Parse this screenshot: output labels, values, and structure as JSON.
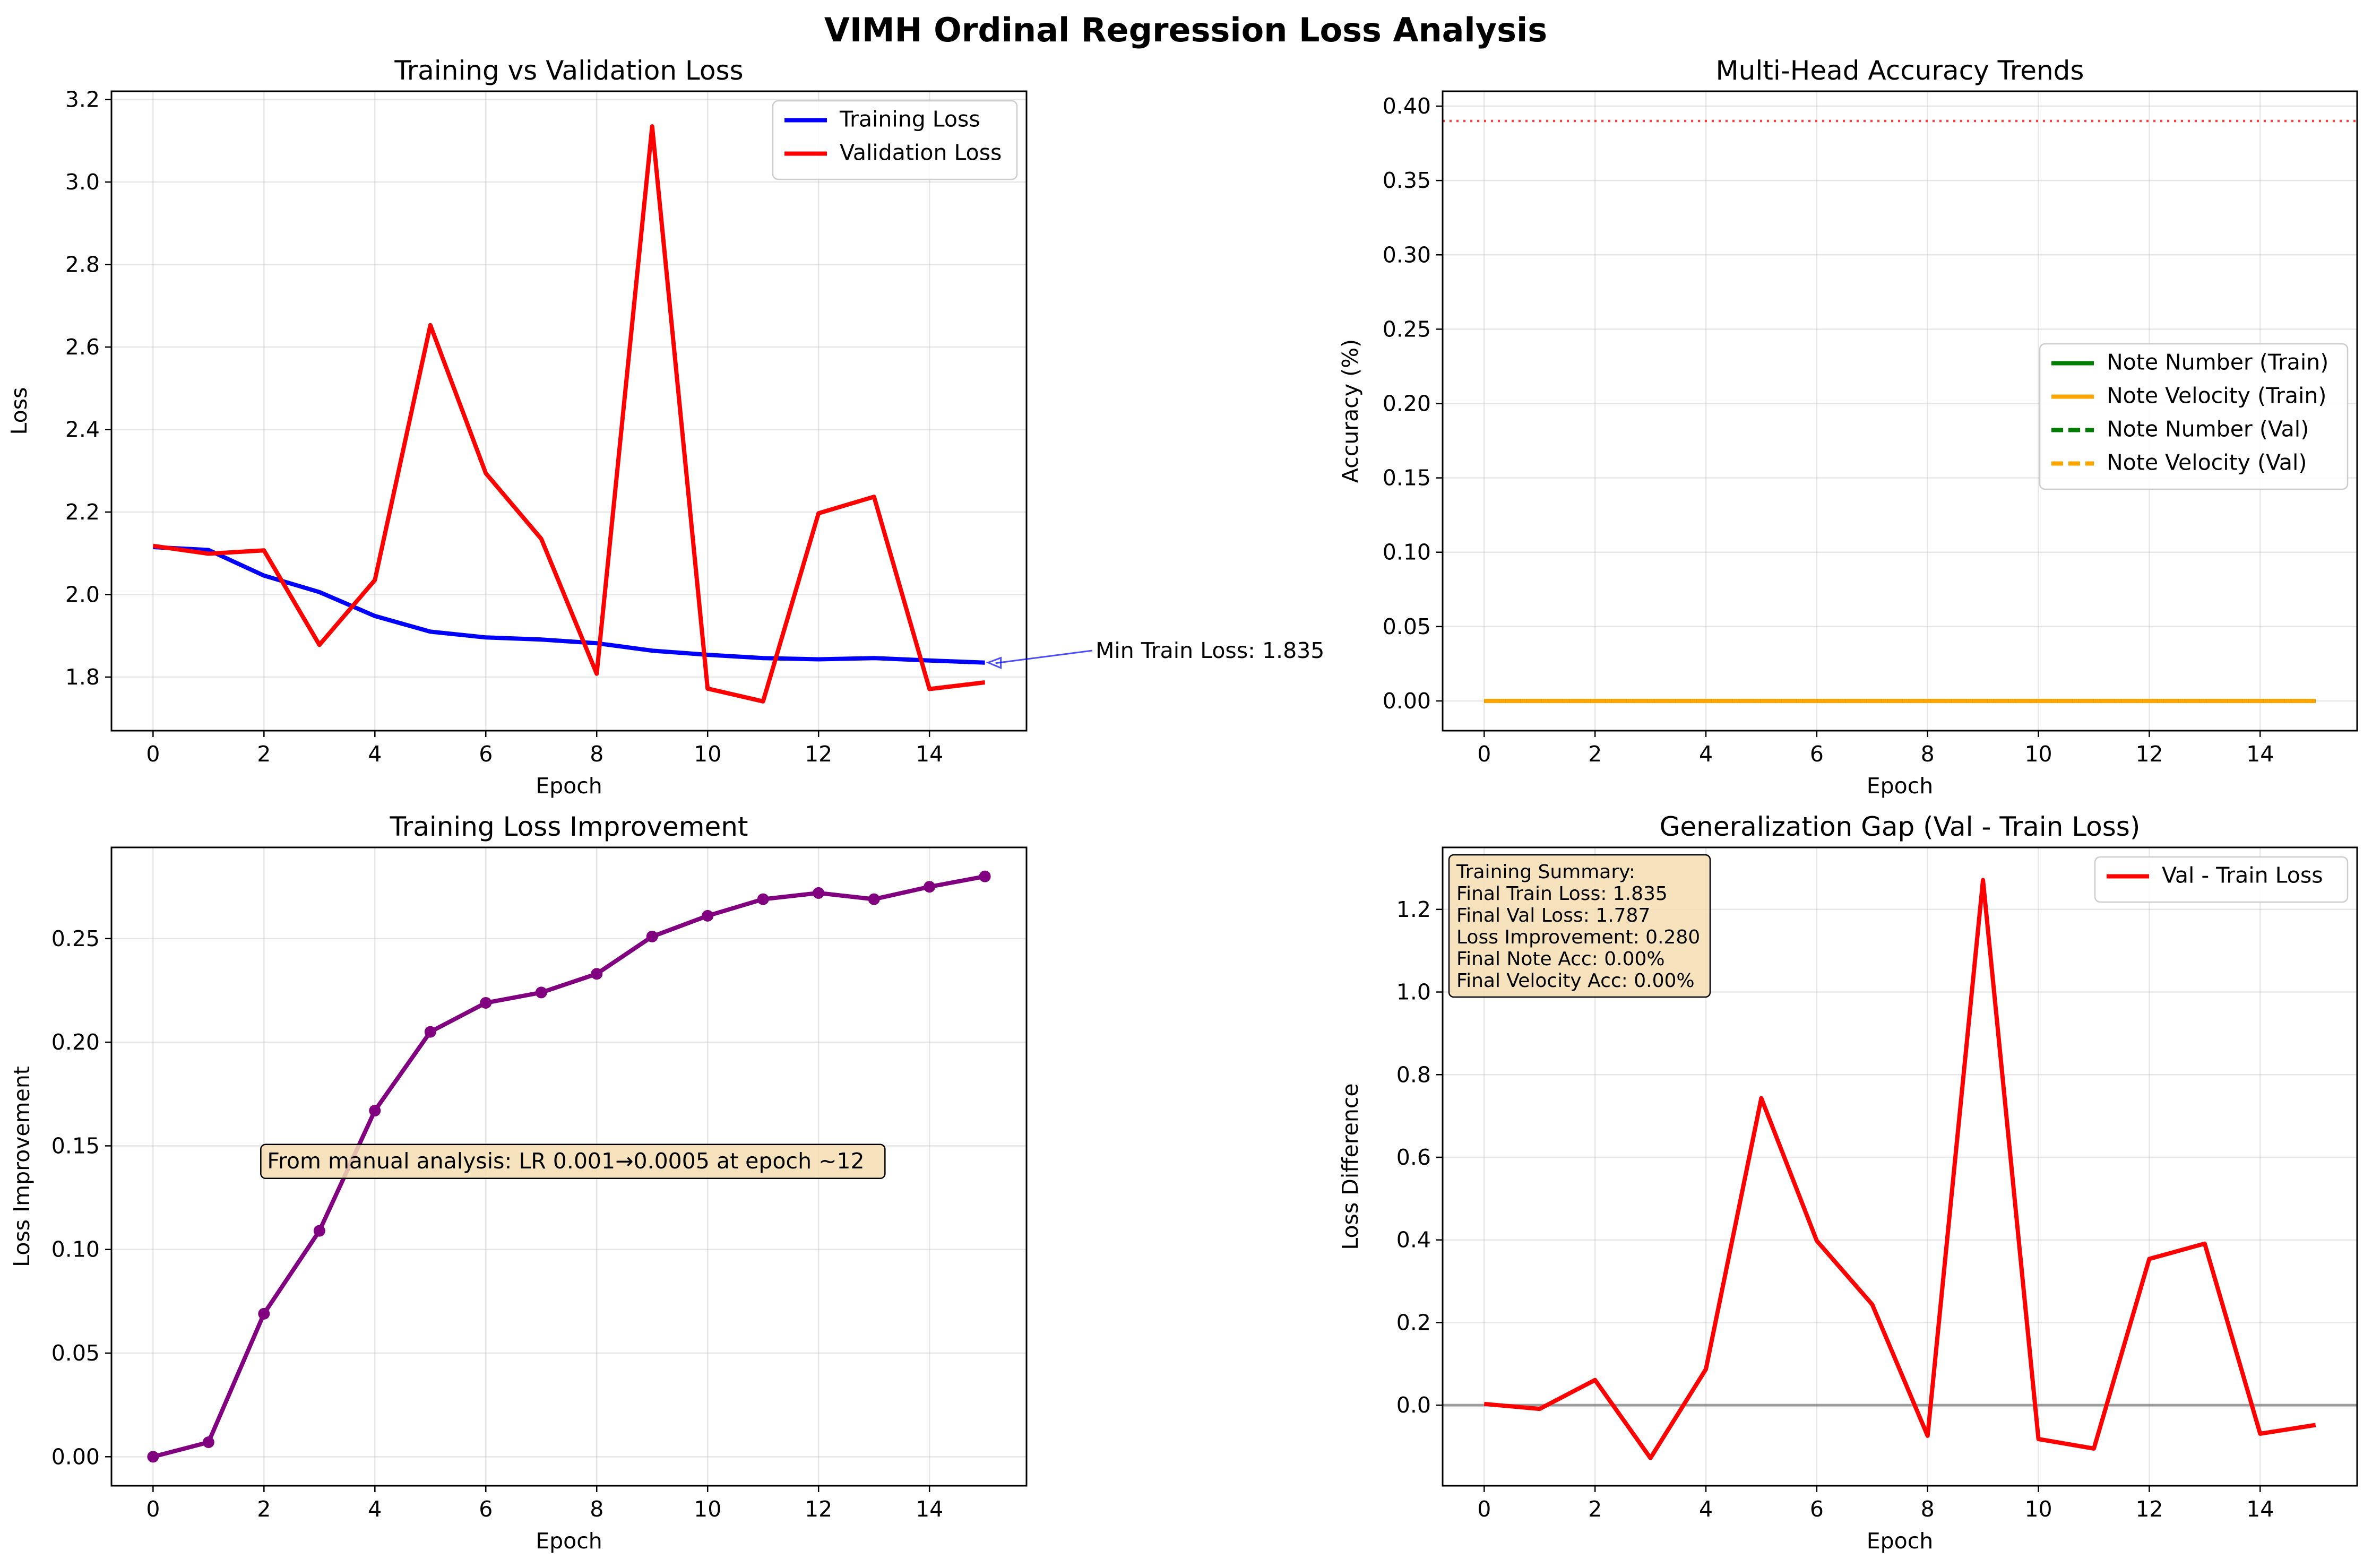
{
  "figure": {
    "suptitle": "VIMH Ordinal Regression Loss Analysis"
  },
  "chart_data": [
    {
      "id": "p1",
      "type": "line",
      "title": "Training vs Validation Loss",
      "xlabel": "Epoch",
      "ylabel": "Loss",
      "xlim": [
        -0.75,
        15.75
      ],
      "ylim": [
        1.67,
        3.22
      ],
      "xticks": [
        0,
        2,
        4,
        6,
        8,
        10,
        12,
        14
      ],
      "xtick_labels": [
        "0",
        "2",
        "4",
        "6",
        "8",
        "10",
        "12",
        "14"
      ],
      "yticks": [
        1.8,
        2.0,
        2.2,
        2.4,
        2.6,
        2.8,
        3.0,
        3.2
      ],
      "ytick_labels": [
        "1.8",
        "2.0",
        "2.2",
        "2.4",
        "2.6",
        "2.8",
        "3.0",
        "3.2"
      ],
      "grid": true,
      "legend": "top-right",
      "x": [
        0,
        1,
        2,
        3,
        4,
        5,
        6,
        7,
        8,
        9,
        10,
        11,
        12,
        13,
        14,
        15
      ],
      "series": [
        {
          "name": "Training Loss",
          "color": "#0000ff",
          "style": "solid",
          "values": [
            2.115,
            2.108,
            2.046,
            2.006,
            1.948,
            1.91,
            1.896,
            1.891,
            1.882,
            1.864,
            1.854,
            1.846,
            1.843,
            1.846,
            1.84,
            1.835
          ]
        },
        {
          "name": "Validation Loss",
          "color": "#ff0000",
          "style": "solid",
          "values": [
            2.118,
            2.099,
            2.107,
            1.878,
            2.035,
            2.653,
            2.294,
            2.135,
            1.808,
            3.135,
            1.772,
            1.741,
            2.197,
            2.237,
            1.771,
            1.787
          ]
        }
      ],
      "annotation": {
        "text": "Min Train Loss: 1.835",
        "color": "#0000ff"
      }
    },
    {
      "id": "p2",
      "type": "line",
      "title": "Multi-Head Accuracy Trends",
      "xlabel": "Epoch",
      "ylabel": "Accuracy (%)",
      "xlim": [
        -0.75,
        15.75
      ],
      "ylim": [
        -0.02,
        0.41
      ],
      "xticks": [
        0,
        2,
        4,
        6,
        8,
        10,
        12,
        14
      ],
      "xtick_labels": [
        "0",
        "2",
        "4",
        "6",
        "8",
        "10",
        "12",
        "14"
      ],
      "yticks": [
        0,
        0.05,
        0.1,
        0.15,
        0.2,
        0.25,
        0.3,
        0.35,
        0.4
      ],
      "ytick_labels": [
        "0.00",
        "0.05",
        "0.10",
        "0.15",
        "0.20",
        "0.25",
        "0.30",
        "0.35",
        "0.40"
      ],
      "grid": true,
      "legend": "center-right",
      "x": [
        0,
        1,
        2,
        3,
        4,
        5,
        6,
        7,
        8,
        9,
        10,
        11,
        12,
        13,
        14,
        15
      ],
      "series": [
        {
          "name": "Note Number (Train)",
          "color": "#008000",
          "style": "solid",
          "values": [
            0,
            0,
            0,
            0,
            0,
            0,
            0,
            0,
            0,
            0,
            0,
            0,
            0,
            0,
            0,
            0
          ]
        },
        {
          "name": "Note Velocity (Train)",
          "color": "#ffa500",
          "style": "solid",
          "values": [
            0,
            0,
            0,
            0,
            0,
            0,
            0,
            0,
            0,
            0,
            0,
            0,
            0,
            0,
            0,
            0
          ]
        },
        {
          "name": "Note Number (Val)",
          "color": "#008000",
          "style": "dashed",
          "values": [
            0,
            0,
            0,
            0,
            0,
            0,
            0,
            0,
            0,
            0,
            0,
            0,
            0,
            0,
            0,
            0
          ]
        },
        {
          "name": "Note Velocity (Val)",
          "color": "#ffa500",
          "style": "dashed",
          "values": [
            0,
            0,
            0,
            0,
            0,
            0,
            0,
            0,
            0,
            0,
            0,
            0,
            0,
            0,
            0,
            0
          ]
        }
      ],
      "hline": {
        "y": 0.39,
        "color": "#ff0000",
        "style": "dotted"
      }
    },
    {
      "id": "p3",
      "type": "line",
      "title": "Training Loss Improvement",
      "xlabel": "Epoch",
      "ylabel": "Loss Improvement",
      "xlim": [
        -0.75,
        15.75
      ],
      "ylim": [
        -0.014,
        0.294
      ],
      "xticks": [
        0,
        2,
        4,
        6,
        8,
        10,
        12,
        14
      ],
      "xtick_labels": [
        "0",
        "2",
        "4",
        "6",
        "8",
        "10",
        "12",
        "14"
      ],
      "yticks": [
        0,
        0.05,
        0.1,
        0.15,
        0.2,
        0.25
      ],
      "ytick_labels": [
        "0.00",
        "0.05",
        "0.10",
        "0.15",
        "0.20",
        "0.25"
      ],
      "grid": true,
      "x": [
        0,
        1,
        2,
        3,
        4,
        5,
        6,
        7,
        8,
        9,
        10,
        11,
        12,
        13,
        14,
        15
      ],
      "series": [
        {
          "color": "#800080",
          "style": "solid",
          "markers": true,
          "values": [
            0.0,
            0.007,
            0.069,
            0.109,
            0.167,
            0.205,
            0.219,
            0.224,
            0.233,
            0.251,
            0.261,
            0.269,
            0.272,
            0.269,
            0.275,
            0.28
          ]
        }
      ],
      "annotation": {
        "text": "From manual analysis: LR 0.001→0.0005 at epoch ~12",
        "x": 2,
        "y": 0.143
      }
    },
    {
      "id": "p4",
      "type": "line",
      "title": "Generalization Gap (Val - Train Loss)",
      "xlabel": "Epoch",
      "ylabel": "Loss Difference",
      "xlim": [
        -0.75,
        15.75
      ],
      "ylim": [
        -0.195,
        1.35
      ],
      "xticks": [
        0,
        2,
        4,
        6,
        8,
        10,
        12,
        14
      ],
      "xtick_labels": [
        "0",
        "2",
        "4",
        "6",
        "8",
        "10",
        "12",
        "14"
      ],
      "yticks": [
        0,
        0.2,
        0.4,
        0.6,
        0.8,
        1.0,
        1.2
      ],
      "ytick_labels": [
        "0.0",
        "0.2",
        "0.4",
        "0.6",
        "0.8",
        "1.0",
        "1.2"
      ],
      "grid": true,
      "legend": "top-right",
      "x": [
        0,
        1,
        2,
        3,
        4,
        5,
        6,
        7,
        8,
        9,
        10,
        11,
        12,
        13,
        14,
        15
      ],
      "series": [
        {
          "name": "Val - Train Loss",
          "color": "#ff0000",
          "style": "solid",
          "values": [
            0.003,
            -0.009,
            0.061,
            -0.128,
            0.087,
            0.743,
            0.398,
            0.244,
            -0.074,
            1.271,
            -0.082,
            -0.105,
            0.354,
            0.391,
            -0.069,
            -0.048
          ]
        }
      ],
      "hline": {
        "y": 0,
        "color": "#808080",
        "style": "solid"
      },
      "summary_box": [
        "Training Summary:",
        "Final Train Loss: 1.835",
        "Final Val Loss: 1.787",
        "Loss Improvement: 0.280",
        "Final Note Acc: 0.00%",
        "Final Velocity Acc: 0.00%"
      ]
    }
  ]
}
